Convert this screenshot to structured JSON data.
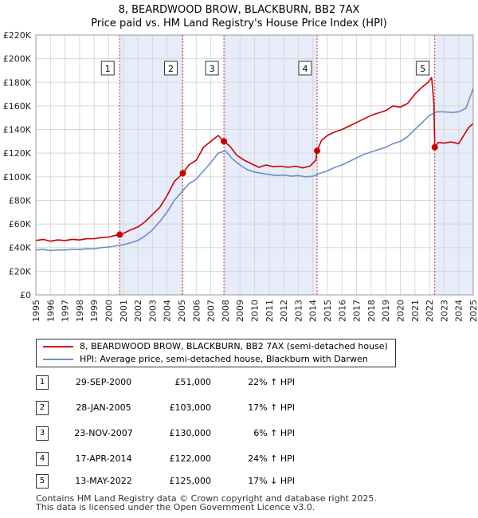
{
  "colors": {
    "property": "#cc0000",
    "hpi": "#6b8fc9",
    "shade": "#e6ecf9",
    "grid": "#d8d8d8",
    "marker_line": "#cc3333"
  },
  "chart_data": {
    "type": "line",
    "title": "8, BEARDWOOD BROW, BLACKBURN, BB2 7AX",
    "subtitle": "Price paid vs. HM Land Registry's House Price Index (HPI)",
    "xlim": [
      1995,
      2025
    ],
    "ylim": [
      0,
      220000
    ],
    "xticks": [
      1995,
      1996,
      1997,
      1998,
      1999,
      2000,
      2001,
      2002,
      2003,
      2004,
      2005,
      2006,
      2007,
      2008,
      2009,
      2010,
      2011,
      2012,
      2013,
      2014,
      2015,
      2016,
      2017,
      2018,
      2019,
      2020,
      2021,
      2022,
      2023,
      2024,
      2025
    ],
    "yticks": [
      {
        "value": 0,
        "label": "£0"
      },
      {
        "value": 20000,
        "label": "£20K"
      },
      {
        "value": 40000,
        "label": "£40K"
      },
      {
        "value": 60000,
        "label": "£60K"
      },
      {
        "value": 80000,
        "label": "£80K"
      },
      {
        "value": 100000,
        "label": "£100K"
      },
      {
        "value": 120000,
        "label": "£120K"
      },
      {
        "value": 140000,
        "label": "£140K"
      },
      {
        "value": 160000,
        "label": "£160K"
      },
      {
        "value": 180000,
        "label": "£180K"
      },
      {
        "value": 200000,
        "label": "£200K"
      },
      {
        "value": 220000,
        "label": "£220K"
      }
    ],
    "series": [
      {
        "name": "8, BEARDWOOD BROW, BLACKBURN, BB2 7AX (semi-detached house)",
        "color": "#cc0000",
        "x": [
          1995.0,
          1995.5,
          1996.0,
          1996.5,
          1997.0,
          1997.5,
          1998.0,
          1998.5,
          1999.0,
          1999.5,
          2000.0,
          2000.5,
          2000.75,
          2001.0,
          2001.5,
          2002.0,
          2002.5,
          2003.0,
          2003.5,
          2004.0,
          2004.5,
          2005.0,
          2005.08,
          2005.5,
          2006.0,
          2006.5,
          2007.0,
          2007.5,
          2007.9,
          2008.3,
          2008.8,
          2009.3,
          2009.8,
          2010.3,
          2010.8,
          2011.3,
          2011.8,
          2012.3,
          2012.8,
          2013.3,
          2013.8,
          2014.2,
          2014.29,
          2014.6,
          2015.0,
          2015.5,
          2016.0,
          2016.5,
          2017.0,
          2017.5,
          2018.0,
          2018.5,
          2019.0,
          2019.5,
          2020.0,
          2020.5,
          2021.0,
          2021.5,
          2021.9,
          2022.15,
          2022.3,
          2022.36,
          2022.6,
          2023.0,
          2023.5,
          2024.0,
          2024.3,
          2024.7,
          2025.0
        ],
        "y": [
          46000,
          47000,
          45500,
          46500,
          46000,
          47000,
          46500,
          47500,
          47500,
          48500,
          49000,
          50500,
          51000,
          52000,
          55000,
          57500,
          62000,
          68000,
          74000,
          84000,
          96000,
          102000,
          103000,
          110000,
          114000,
          125000,
          130000,
          135000,
          130000,
          126000,
          118000,
          114000,
          111000,
          108000,
          110000,
          108500,
          109000,
          108000,
          109000,
          107500,
          109000,
          114000,
          122000,
          131000,
          135000,
          138000,
          140000,
          143000,
          146000,
          149000,
          152000,
          154000,
          156000,
          160000,
          159000,
          162000,
          170000,
          176000,
          180000,
          184000,
          162000,
          125000,
          129000,
          128500,
          129500,
          128000,
          134000,
          142000,
          145000
        ]
      },
      {
        "name": "HPI: Average price, semi-detached house, Blackburn with Darwen",
        "color": "#6b8fc9",
        "x": [
          1995.0,
          1995.5,
          1996.0,
          1996.5,
          1997.0,
          1997.5,
          1998.0,
          1998.5,
          1999.0,
          1999.5,
          2000.0,
          2000.5,
          2001.0,
          2001.5,
          2002.0,
          2002.5,
          2003.0,
          2003.5,
          2004.0,
          2004.5,
          2005.0,
          2005.5,
          2006.0,
          2006.5,
          2007.0,
          2007.5,
          2008.0,
          2008.5,
          2009.0,
          2009.5,
          2010.0,
          2010.5,
          2011.0,
          2011.5,
          2012.0,
          2012.5,
          2013.0,
          2013.5,
          2014.0,
          2014.5,
          2015.0,
          2015.5,
          2016.0,
          2016.5,
          2017.0,
          2017.5,
          2018.0,
          2018.5,
          2019.0,
          2019.5,
          2020.0,
          2020.5,
          2021.0,
          2021.5,
          2022.0,
          2022.5,
          2023.0,
          2023.5,
          2024.0,
          2024.5,
          2025.0
        ],
        "y": [
          38000,
          38500,
          37500,
          38000,
          38000,
          38500,
          38500,
          39000,
          39000,
          40000,
          40500,
          41500,
          42500,
          44000,
          46000,
          50000,
          55000,
          62000,
          70000,
          80000,
          87000,
          94000,
          98000,
          105000,
          112000,
          120000,
          122000,
          115000,
          110000,
          106000,
          104000,
          103000,
          102000,
          101000,
          101500,
          100500,
          101000,
          100000,
          100500,
          103000,
          105000,
          108000,
          110000,
          113000,
          116000,
          119000,
          121000,
          123000,
          125000,
          128000,
          130000,
          134000,
          140000,
          146000,
          152000,
          155000,
          155000,
          154500,
          155000,
          158000,
          175000
        ]
      }
    ],
    "sales": [
      {
        "n": "1",
        "x": 2000.75,
        "y": 51000
      },
      {
        "n": "2",
        "x": 2005.08,
        "y": 103000
      },
      {
        "n": "3",
        "x": 2007.9,
        "y": 130000
      },
      {
        "n": "4",
        "x": 2014.29,
        "y": 122000
      },
      {
        "n": "5",
        "x": 2022.36,
        "y": 125000
      }
    ],
    "shaded_ranges": [
      [
        2000.75,
        2005.08
      ],
      [
        2007.9,
        2014.29
      ],
      [
        2022.36,
        2025.0
      ]
    ]
  },
  "legend": {
    "property_label": "8, BEARDWOOD BROW, BLACKBURN, BB2 7AX (semi-detached house)",
    "hpi_label": "HPI: Average price, semi-detached house, Blackburn with Darwen"
  },
  "sales_table": [
    {
      "n": "1",
      "date": "29-SEP-2000",
      "price": "£51,000",
      "hpi": "22% ↑ HPI"
    },
    {
      "n": "2",
      "date": "28-JAN-2005",
      "price": "£103,000",
      "hpi": "17% ↑ HPI"
    },
    {
      "n": "3",
      "date": "23-NOV-2007",
      "price": "£130,000",
      "hpi": "6% ↑ HPI"
    },
    {
      "n": "4",
      "date": "17-APR-2014",
      "price": "£122,000",
      "hpi": "24% ↑ HPI"
    },
    {
      "n": "5",
      "date": "13-MAY-2022",
      "price": "£125,000",
      "hpi": "17% ↓ HPI"
    }
  ],
  "footer": {
    "line1": "Contains HM Land Registry data © Crown copyright and database right 2025.",
    "line2": "This data is licensed under the Open Government Licence v3.0."
  }
}
